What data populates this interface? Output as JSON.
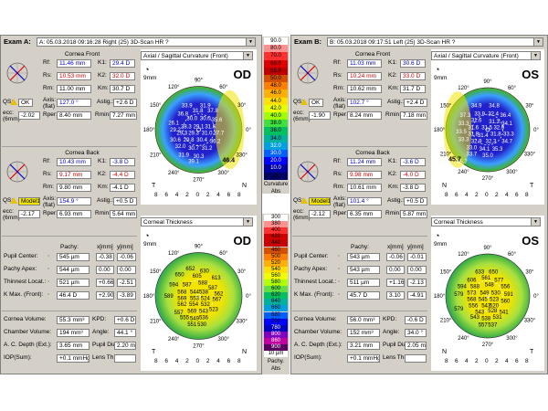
{
  "scaleTop": [
    "90.0",
    "80.0",
    "70.0",
    "60.0",
    "55.0",
    "50.0",
    "48.0",
    "46.0",
    "44.0",
    "42.0",
    "40.0",
    "38.0",
    "36.0",
    "34.0",
    "32.0",
    "30.0",
    "20.0",
    "10.0",
    "D"
  ],
  "scaleTopColors": [
    "#ffffff",
    "#ff9090",
    "#ff3030",
    "#e00000",
    "#c00000",
    "#d25000",
    "#ff8000",
    "#ffb000",
    "#ffe000",
    "#e8ff00",
    "#a0ff00",
    "#40e040",
    "#00c060",
    "#00b0a0",
    "#00a0e0",
    "#0060ff",
    "#0000ff",
    "#0000a0",
    "#000060"
  ],
  "scaleTopTitle": [
    "Curvature",
    "Abs"
  ],
  "scaleBottom": [
    "300",
    "380",
    "400",
    "420",
    "440",
    "460",
    "500",
    "520",
    "540",
    "560",
    "580",
    "600",
    "620",
    "640",
    "660",
    "680",
    "700",
    "780",
    "800",
    "860",
    "900",
    "10 µm"
  ],
  "scaleBottomColors": [
    "#ffffff",
    "#ff9090",
    "#ff3030",
    "#d00000",
    "#c80000",
    "#d25000",
    "#ff8000",
    "#ffb000",
    "#ffe000",
    "#f0ff00",
    "#b0ff00",
    "#60e040",
    "#00c060",
    "#00b0a0",
    "#00a0e0",
    "#0060ff",
    "#0000ff",
    "#0000c0",
    "#8000c0",
    "#c000a0",
    "#5a0060",
    "#ffffff"
  ],
  "scaleBottomTitle": [
    "Pachy.",
    "Abs"
  ],
  "mapColors": {
    "flat": "#2222cc",
    "mid": "#3aa0ff",
    "green": "#3cb043",
    "yellow": "#f2e400",
    "orange": "#ff8c00"
  },
  "left": {
    "examLabel": "Exam A:",
    "exam": "A: 05.03.2018  09:16:28  Right  (25) 3D-Scan HR  ?",
    "front": {
      "title": "Cornea Front",
      "Rf": "11.46 mm",
      "Rs": "10.53 mm",
      "Rm": "11.00 mm",
      "K1": "29.4 D",
      "K2": "32.0 D",
      "Km": "30.7 D",
      "qs": "OK",
      "axis": "127.0 °",
      "astig": "+2.6 D",
      "ecc": "-2.02",
      "rper": "8.40 mm",
      "rmin": "7.27 mm"
    },
    "back": {
      "title": "Cornea Back",
      "Rf": "10.43 mm",
      "Rs": "9.17 mm",
      "Rm": "9.80 mm",
      "K1": "-3.8 D",
      "K2": "-4.4 D",
      "Km": "-4.1 D",
      "qs": "Model1",
      "axis": "154.9 °",
      "astig": "+0.5 D",
      "ecc": "-2.17",
      "rper": "6.93 mm",
      "rmin": "5.64 mm"
    },
    "pachy": [
      {
        "label": "Pupil Center:",
        "pachy": "545 µm",
        "x": "-0.38",
        "y": "-0.06"
      },
      {
        "label": "Pachy Apex:",
        "pachy": "544 µm",
        "x": "0.00",
        "y": "0.00"
      },
      {
        "label": "Thinnest Locat.:",
        "pachy": "521 µm",
        "x": "+0.66",
        "y": "-2.51"
      },
      {
        "label": "K Max. (Front):",
        "pachy": "46.4 D",
        "x": "+2.90",
        "y": "-3.89"
      }
    ],
    "vol": {
      "cv": "55.3 mm³",
      "kpd": "+0.6 D",
      "chv": "194 mm³",
      "angle": "44.1 °",
      "acd": "3.65 mm",
      "pd": "2.20 mm",
      "iop": "+0.1 mmHg",
      "lt": ""
    },
    "map1": {
      "title": "Axial / Sagittal Curvature (Front)",
      "eye": "OD",
      "kmax": "46.4",
      "values": [
        {
          "v": "33.9",
          "x": 0.36,
          "y": 0.21
        },
        {
          "v": "31.9",
          "x": 0.58,
          "y": 0.21
        },
        {
          "v": "36.8",
          "x": 0.31,
          "y": 0.31
        },
        {
          "v": "31.8",
          "x": 0.49,
          "y": 0.27
        },
        {
          "v": "37.8",
          "x": 0.67,
          "y": 0.27
        },
        {
          "v": "26.1",
          "x": 0.2,
          "y": 0.42
        },
        {
          "v": "30.0",
          "x": 0.42,
          "y": 0.36
        },
        {
          "v": "30.0",
          "x": 0.58,
          "y": 0.36
        },
        {
          "v": "35.6",
          "x": 0.72,
          "y": 0.38
        },
        {
          "v": "29.2",
          "x": 0.22,
          "y": 0.5
        },
        {
          "v": "28.3",
          "x": 0.35,
          "y": 0.46
        },
        {
          "v": "29.1",
          "x": 0.5,
          "y": 0.46
        },
        {
          "v": "31.6",
          "x": 0.64,
          "y": 0.46
        },
        {
          "v": "29.3",
          "x": 0.3,
          "y": 0.54
        },
        {
          "v": "29.3",
          "x": 0.44,
          "y": 0.54
        },
        {
          "v": "31.0",
          "x": 0.6,
          "y": 0.54
        },
        {
          "v": "37.7",
          "x": 0.74,
          "y": 0.54
        },
        {
          "v": "30.6",
          "x": 0.22,
          "y": 0.62
        },
        {
          "v": "29.8",
          "x": 0.38,
          "y": 0.62
        },
        {
          "v": "30.4",
          "x": 0.54,
          "y": 0.62
        },
        {
          "v": "36.2",
          "x": 0.7,
          "y": 0.64
        },
        {
          "v": "32.0",
          "x": 0.28,
          "y": 0.7
        },
        {
          "v": "30.7",
          "x": 0.44,
          "y": 0.72
        },
        {
          "v": "31.2",
          "x": 0.6,
          "y": 0.72
        },
        {
          "v": "31.9",
          "x": 0.32,
          "y": 0.8
        },
        {
          "v": "30.3",
          "x": 0.5,
          "y": 0.82
        },
        {
          "v": "39.1",
          "x": 0.44,
          "y": 0.88
        }
      ]
    },
    "map2": {
      "title": "Corneal Thickness",
      "eye": "OD",
      "values": [
        {
          "v": "652",
          "x": 0.4,
          "y": 0.17
        },
        {
          "v": "630",
          "x": 0.57,
          "y": 0.2
        },
        {
          "v": "650",
          "x": 0.27,
          "y": 0.24
        },
        {
          "v": "605",
          "x": 0.48,
          "y": 0.26
        },
        {
          "v": "613",
          "x": 0.71,
          "y": 0.28
        },
        {
          "v": "594",
          "x": 0.2,
          "y": 0.36
        },
        {
          "v": "587",
          "x": 0.36,
          "y": 0.36
        },
        {
          "v": "588",
          "x": 0.55,
          "y": 0.34
        },
        {
          "v": "587",
          "x": 0.67,
          "y": 0.4
        },
        {
          "v": "568",
          "x": 0.3,
          "y": 0.45
        },
        {
          "v": "544",
          "x": 0.45,
          "y": 0.45
        },
        {
          "v": "538",
          "x": 0.56,
          "y": 0.45
        },
        {
          "v": "562",
          "x": 0.74,
          "y": 0.47
        },
        {
          "v": "589",
          "x": 0.14,
          "y": 0.5
        },
        {
          "v": "569",
          "x": 0.3,
          "y": 0.53
        },
        {
          "v": "553",
          "x": 0.45,
          "y": 0.53
        },
        {
          "v": "524",
          "x": 0.58,
          "y": 0.53
        },
        {
          "v": "567",
          "x": 0.72,
          "y": 0.54
        },
        {
          "v": "562",
          "x": 0.3,
          "y": 0.6
        },
        {
          "v": "554",
          "x": 0.44,
          "y": 0.6
        },
        {
          "v": "532",
          "x": 0.58,
          "y": 0.6
        },
        {
          "v": "557",
          "x": 0.26,
          "y": 0.7
        },
        {
          "v": "569",
          "x": 0.42,
          "y": 0.68
        },
        {
          "v": "543",
          "x": 0.56,
          "y": 0.68
        },
        {
          "v": "523",
          "x": 0.68,
          "y": 0.66
        },
        {
          "v": "555",
          "x": 0.33,
          "y": 0.76
        },
        {
          "v": "549",
          "x": 0.45,
          "y": 0.77
        },
        {
          "v": "536",
          "x": 0.56,
          "y": 0.76
        },
        {
          "v": "551",
          "x": 0.42,
          "y": 0.84
        },
        {
          "v": "530",
          "x": 0.54,
          "y": 0.84
        }
      ]
    }
  },
  "right": {
    "examLabel": "Exam B:",
    "exam": "B: 05.03.2018  09:17:51  Left  (25) 3D-Scan HR  ?",
    "front": {
      "title": "Cornea Front",
      "Rf": "11.03 mm",
      "Rs": "10.24 mm",
      "Rm": "10.62 mm",
      "K1": "30.6 D",
      "K2": "33.0 D",
      "Km": "31.7 D",
      "qs": "OK",
      "axis": "102.7 °",
      "astig": "+2.4 D",
      "ecc": "-1.90",
      "rper": "8.24 mm",
      "rmin": "7.18 mm"
    },
    "back": {
      "title": "Cornea Back",
      "Rf": "11.24 mm",
      "Rs": "9.98 mm",
      "Rm": "10.61 mm",
      "K1": "-3.6 D",
      "K2": "-4.0 D",
      "Km": "-3.8 D",
      "qs": "Model1",
      "axis": "101.4 °",
      "astig": "+0.5 D",
      "ecc": "-2.12",
      "rper": "6.35 mm",
      "rmin": "5.87 mm"
    },
    "pachy": [
      {
        "label": "Pupil Center:",
        "pachy": "543 µm",
        "x": "-0.06",
        "y": "-0.01"
      },
      {
        "label": "Pachy Apex:",
        "pachy": "543 µm",
        "x": "0.00",
        "y": "0.00"
      },
      {
        "label": "Thinnest Locat.:",
        "pachy": "511 µm",
        "x": "+1.16",
        "y": "-2.13"
      },
      {
        "label": "K Max. (Front):",
        "pachy": "45.7 D",
        "x": "3.10",
        "y": "-4.91"
      }
    ],
    "vol": {
      "cv": "56.0 mm³",
      "kpd": "-0.6 D",
      "chv": "152 mm³",
      "angle": "34.0 °",
      "acd": "3.21 mm",
      "pd": "2.05 mm",
      "iop": "+0.1 mmHg",
      "lt": ""
    },
    "map1": {
      "title": "Axial / Sagittal Curvature (Front)",
      "eye": "OS",
      "kmax": "45.7",
      "values": [
        {
          "v": "34.9",
          "x": 0.36,
          "y": 0.2
        },
        {
          "v": "34.8",
          "x": 0.58,
          "y": 0.2
        },
        {
          "v": "37.3",
          "x": 0.22,
          "y": 0.32
        },
        {
          "v": "33.9",
          "x": 0.4,
          "y": 0.3
        },
        {
          "v": "32.4",
          "x": 0.57,
          "y": 0.3
        },
        {
          "v": "36.4",
          "x": 0.72,
          "y": 0.32
        },
        {
          "v": "33.3",
          "x": 0.2,
          "y": 0.42
        },
        {
          "v": "31.6",
          "x": 0.36,
          "y": 0.38
        },
        {
          "v": "31.3",
          "x": 0.58,
          "y": 0.4
        },
        {
          "v": "34.1",
          "x": 0.74,
          "y": 0.42
        },
        {
          "v": "33.5",
          "x": 0.17,
          "y": 0.52
        },
        {
          "v": "31.6",
          "x": 0.32,
          "y": 0.47
        },
        {
          "v": "31.5",
          "x": 0.49,
          "y": 0.47
        },
        {
          "v": "32.9",
          "x": 0.64,
          "y": 0.47
        },
        {
          "v": "31.8",
          "x": 0.32,
          "y": 0.55
        },
        {
          "v": "31.4",
          "x": 0.44,
          "y": 0.57
        },
        {
          "v": "31.8",
          "x": 0.6,
          "y": 0.55
        },
        {
          "v": "33.3",
          "x": 0.76,
          "y": 0.55
        },
        {
          "v": "33.3",
          "x": 0.2,
          "y": 0.62
        },
        {
          "v": "32.9",
          "x": 0.36,
          "y": 0.64
        },
        {
          "v": "32.3",
          "x": 0.54,
          "y": 0.64
        },
        {
          "v": "34.7",
          "x": 0.74,
          "y": 0.64
        },
        {
          "v": "33.0",
          "x": 0.3,
          "y": 0.72
        },
        {
          "v": "34.1",
          "x": 0.46,
          "y": 0.74
        },
        {
          "v": "35.3",
          "x": 0.62,
          "y": 0.74
        },
        {
          "v": "33.7",
          "x": 0.3,
          "y": 0.8
        },
        {
          "v": "35.0",
          "x": 0.5,
          "y": 0.82
        },
        {
          "v": "45.7",
          "x": 0.18,
          "y": 0.9
        }
      ]
    },
    "map2": {
      "title": "Corneal Thickness",
      "eye": "OS",
      "values": [
        {
          "v": "633",
          "x": 0.4,
          "y": 0.2
        },
        {
          "v": "650",
          "x": 0.57,
          "y": 0.2
        },
        {
          "v": "606",
          "x": 0.3,
          "y": 0.3
        },
        {
          "v": "561",
          "x": 0.48,
          "y": 0.27
        },
        {
          "v": "577",
          "x": 0.64,
          "y": 0.3
        },
        {
          "v": "594",
          "x": 0.18,
          "y": 0.38
        },
        {
          "v": "588",
          "x": 0.34,
          "y": 0.38
        },
        {
          "v": "548",
          "x": 0.52,
          "y": 0.36
        },
        {
          "v": "556",
          "x": 0.72,
          "y": 0.38
        },
        {
          "v": "579",
          "x": 0.14,
          "y": 0.48
        },
        {
          "v": "573",
          "x": 0.3,
          "y": 0.46
        },
        {
          "v": "549",
          "x": 0.46,
          "y": 0.46
        },
        {
          "v": "530",
          "x": 0.6,
          "y": 0.46
        },
        {
          "v": "591",
          "x": 0.76,
          "y": 0.48
        },
        {
          "v": "568",
          "x": 0.3,
          "y": 0.54
        },
        {
          "v": "545",
          "x": 0.44,
          "y": 0.54
        },
        {
          "v": "523",
          "x": 0.58,
          "y": 0.54
        },
        {
          "v": "560",
          "x": 0.72,
          "y": 0.56
        },
        {
          "v": "556",
          "x": 0.32,
          "y": 0.62
        },
        {
          "v": "543",
          "x": 0.48,
          "y": 0.62
        },
        {
          "v": "520",
          "x": 0.58,
          "y": 0.62
        },
        {
          "v": "579",
          "x": 0.14,
          "y": 0.66
        },
        {
          "v": "543",
          "x": 0.4,
          "y": 0.7
        },
        {
          "v": "528",
          "x": 0.56,
          "y": 0.68
        },
        {
          "v": "541",
          "x": 0.7,
          "y": 0.7
        },
        {
          "v": "543",
          "x": 0.34,
          "y": 0.76
        },
        {
          "v": "538",
          "x": 0.48,
          "y": 0.78
        },
        {
          "v": "531",
          "x": 0.62,
          "y": 0.76
        },
        {
          "v": "557",
          "x": 0.44,
          "y": 0.86
        },
        {
          "v": "537",
          "x": 0.56,
          "y": 0.86
        }
      ]
    }
  },
  "labels": {
    "Rf": "Rf:",
    "Rs": "Rs:",
    "Rm": "Rm:",
    "K1": "K1:",
    "K2": "K2:",
    "Km": "Km:",
    "qs": "QS:",
    "axis": "Axis:",
    "flat": "(flat)",
    "astig": "Astig.:",
    "ecc": "ecc:",
    "ecc2": "(6mm)",
    "rper": "Rper:",
    "rmin": "Rmin:",
    "pachyH": "Pachy:",
    "xH": "x[mm]",
    "yH": "y[mm]",
    "cv": "Cornea Volume:",
    "kpd": "KPD:",
    "chv": "Chamber Volume:",
    "angle": "Angle:",
    "acd": "A. C. Depth (Ext.):",
    "pd": "Pupil Dia:",
    "iop": "IOP(Sum):",
    "lt": "Lens Th.:",
    "mm9": "9mm",
    "deg": {
      "d90": "90°",
      "d60": "60°",
      "d120": "120°",
      "d30": "30°",
      "d150": "150°",
      "d0": "0°",
      "d180": "180°",
      "d330": "330°",
      "d210": "210°",
      "d300": "300°",
      "d240": "240°",
      "d270": "270°"
    },
    "axisBottom": [
      "8",
      "6",
      "4",
      "2",
      "0",
      "2",
      "4",
      "6",
      "8"
    ],
    "T": "T",
    "N": "N"
  }
}
